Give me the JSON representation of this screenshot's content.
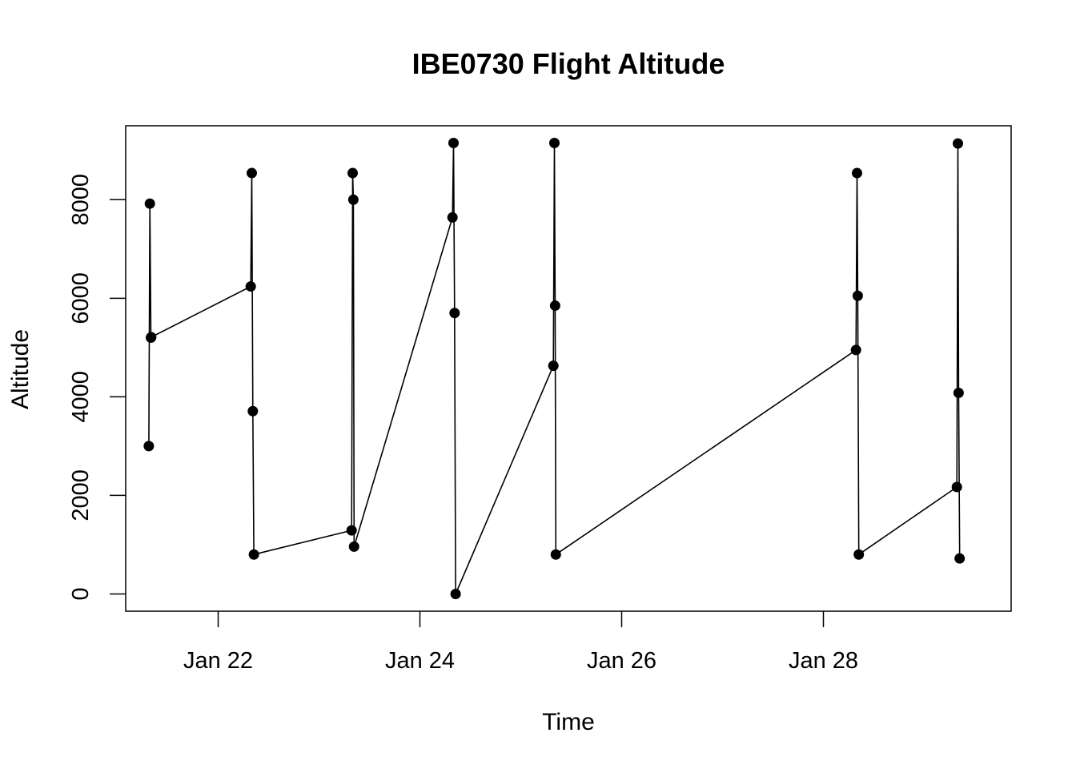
{
  "chart_data": {
    "type": "line",
    "title": "IBE0730 Flight Altitude",
    "xlabel": "Time",
    "ylabel": "Altitude",
    "x_type": "date",
    "x_ticks": [
      {
        "date": "2024-01-22",
        "label": "Jan 22"
      },
      {
        "date": "2024-01-24",
        "label": "Jan 24"
      },
      {
        "date": "2024-01-26",
        "label": "Jan 26"
      },
      {
        "date": "2024-01-28",
        "label": "Jan 28"
      }
    ],
    "y_ticks": [
      0,
      2000,
      4000,
      6000,
      8000
    ],
    "xlim": [
      "2024-01-21T02:00",
      "2024-01-29T20:40"
    ],
    "ylim": [
      -350,
      9500
    ],
    "grid": false,
    "legend": "none",
    "line_color": "#000000",
    "marker": "filled-circle",
    "series": [
      {
        "points": [
          {
            "x": "2024-01-21T07:30",
            "y": 3000
          },
          {
            "x": "2024-01-21T07:45",
            "y": 7920
          },
          {
            "x": "2024-01-21T08:00",
            "y": 5200
          },
          {
            "x": "2024-01-21T08:05",
            "y": 5210
          },
          {
            "x": "2024-01-22T07:45",
            "y": 6240
          },
          {
            "x": "2024-01-22T08:00",
            "y": 8540
          },
          {
            "x": "2024-01-22T08:15",
            "y": 3710
          },
          {
            "x": "2024-01-22T08:30",
            "y": 800
          },
          {
            "x": "2024-01-23T07:45",
            "y": 1290
          },
          {
            "x": "2024-01-23T08:00",
            "y": 8540
          },
          {
            "x": "2024-01-23T08:10",
            "y": 8000
          },
          {
            "x": "2024-01-23T08:20",
            "y": 960
          },
          {
            "x": "2024-01-24T07:45",
            "y": 7640
          },
          {
            "x": "2024-01-24T08:00",
            "y": 9150
          },
          {
            "x": "2024-01-24T08:15",
            "y": 5700
          },
          {
            "x": "2024-01-24T08:30",
            "y": 0
          },
          {
            "x": "2024-01-25T07:45",
            "y": 4630
          },
          {
            "x": "2024-01-25T08:00",
            "y": 9150
          },
          {
            "x": "2024-01-25T08:10",
            "y": 5850
          },
          {
            "x": "2024-01-25T08:20",
            "y": 800
          },
          {
            "x": "2024-01-28T07:45",
            "y": 4950
          },
          {
            "x": "2024-01-28T08:00",
            "y": 8540
          },
          {
            "x": "2024-01-28T08:10",
            "y": 6050
          },
          {
            "x": "2024-01-28T08:25",
            "y": 800
          },
          {
            "x": "2024-01-29T07:45",
            "y": 2170
          },
          {
            "x": "2024-01-29T08:00",
            "y": 9140
          },
          {
            "x": "2024-01-29T08:10",
            "y": 4080
          },
          {
            "x": "2024-01-29T08:25",
            "y": 720
          }
        ]
      }
    ]
  }
}
